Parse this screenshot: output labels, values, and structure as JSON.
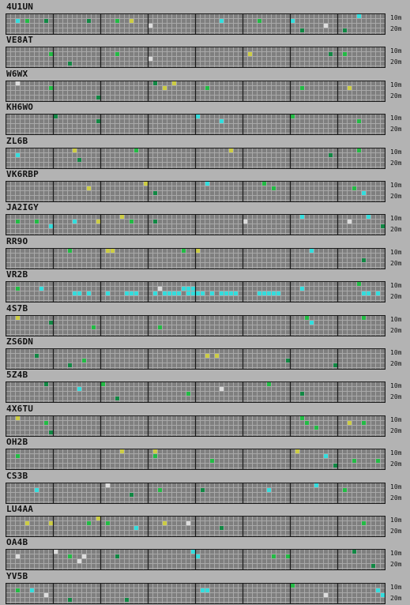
{
  "band_labels": {
    "top": "10m",
    "bottom": "20m"
  },
  "colors": {
    "background": "#b3b3b3",
    "grid_fill": "#7f7f7f",
    "grid_line": "#a9a9a9",
    "hour_line": "#1a1a1a"
  },
  "stations": [
    {
      "call": "4U1UN",
      "spots": [
        [
          2,
          1,
          "c"
        ],
        [
          4,
          1,
          "g"
        ],
        [
          8,
          1,
          "dg"
        ],
        [
          17,
          1,
          "dg"
        ],
        [
          23,
          1,
          "g"
        ],
        [
          26,
          1,
          "y"
        ],
        [
          30,
          2,
          "w"
        ],
        [
          45,
          1,
          "c"
        ],
        [
          53,
          1,
          "g"
        ],
        [
          60,
          1,
          "c"
        ],
        [
          62,
          3,
          "dg"
        ],
        [
          67,
          2,
          "w"
        ],
        [
          71,
          3,
          "dg"
        ],
        [
          74,
          0,
          "c"
        ]
      ]
    },
    {
      "call": "VE8AT",
      "spots": [
        [
          9,
          1,
          "g"
        ],
        [
          13,
          3,
          "dg"
        ],
        [
          23,
          1,
          "g"
        ],
        [
          30,
          2,
          "w"
        ],
        [
          51,
          1,
          "y"
        ],
        [
          68,
          1,
          "dg"
        ],
        [
          71,
          1,
          "g"
        ]
      ]
    },
    {
      "call": "W6WX",
      "spots": [
        [
          2,
          0,
          "w"
        ],
        [
          9,
          1,
          "g"
        ],
        [
          19,
          3,
          "dg"
        ],
        [
          31,
          0,
          "dg"
        ],
        [
          33,
          1,
          "y"
        ],
        [
          35,
          0,
          "y"
        ],
        [
          42,
          1,
          "g"
        ],
        [
          62,
          1,
          "g"
        ],
        [
          72,
          1,
          "y"
        ]
      ]
    },
    {
      "call": "KH6WO",
      "spots": [
        [
          10,
          0,
          "dg"
        ],
        [
          19,
          1,
          "dg"
        ],
        [
          40,
          0,
          "c"
        ],
        [
          45,
          1,
          "c"
        ],
        [
          60,
          0,
          "g"
        ],
        [
          74,
          1,
          "g"
        ]
      ]
    },
    {
      "call": "ZL6B",
      "spots": [
        [
          2,
          1,
          "c"
        ],
        [
          14,
          0,
          "y"
        ],
        [
          15,
          2,
          "dg"
        ],
        [
          27,
          0,
          "g"
        ],
        [
          47,
          0,
          "y"
        ],
        [
          68,
          1,
          "dg"
        ],
        [
          74,
          0,
          "g"
        ]
      ]
    },
    {
      "call": "VK6RBP",
      "spots": [
        [
          17,
          1,
          "y"
        ],
        [
          29,
          0,
          "y"
        ],
        [
          31,
          2,
          "dg"
        ],
        [
          42,
          0,
          "c"
        ],
        [
          54,
          0,
          "g"
        ],
        [
          56,
          1,
          "g"
        ],
        [
          73,
          1,
          "g"
        ],
        [
          75,
          2,
          "c"
        ]
      ]
    },
    {
      "call": "JA2IGY",
      "spots": [
        [
          2,
          1,
          "g"
        ],
        [
          6,
          1,
          "g"
        ],
        [
          9,
          2,
          "c"
        ],
        [
          14,
          1,
          "c"
        ],
        [
          19,
          1,
          "y"
        ],
        [
          24,
          0,
          "y"
        ],
        [
          26,
          1,
          "g"
        ],
        [
          31,
          1,
          "dg"
        ],
        [
          50,
          1,
          "w"
        ],
        [
          62,
          0,
          "c"
        ],
        [
          72,
          1,
          "w"
        ],
        [
          76,
          0,
          "c"
        ],
        [
          79,
          2,
          "dg"
        ]
      ]
    },
    {
      "call": "RR9O",
      "spots": [
        [
          13,
          0,
          "g"
        ],
        [
          21,
          0,
          "y"
        ],
        [
          22,
          0,
          "y"
        ],
        [
          37,
          0,
          "g"
        ],
        [
          40,
          0,
          "y"
        ],
        [
          64,
          0,
          "c"
        ],
        [
          75,
          2,
          "dg"
        ]
      ]
    },
    {
      "call": "VR2B",
      "spots": [
        [
          2,
          1,
          "g"
        ],
        [
          7,
          1,
          "c"
        ],
        [
          14,
          2,
          "c"
        ],
        [
          15,
          2,
          "c"
        ],
        [
          17,
          2,
          "c"
        ],
        [
          21,
          2,
          "c"
        ],
        [
          25,
          2,
          "c"
        ],
        [
          26,
          2,
          "c"
        ],
        [
          27,
          2,
          "c"
        ],
        [
          31,
          2,
          "c"
        ],
        [
          32,
          1,
          "w"
        ],
        [
          33,
          2,
          "c"
        ],
        [
          34,
          2,
          "c"
        ],
        [
          35,
          2,
          "c"
        ],
        [
          36,
          2,
          "c"
        ],
        [
          37,
          1,
          "c"
        ],
        [
          38,
          1,
          "c"
        ],
        [
          38,
          2,
          "c"
        ],
        [
          39,
          1,
          "c"
        ],
        [
          39,
          2,
          "c"
        ],
        [
          40,
          2,
          "c"
        ],
        [
          41,
          2,
          "c"
        ],
        [
          43,
          2,
          "c"
        ],
        [
          45,
          2,
          "c"
        ],
        [
          46,
          2,
          "c"
        ],
        [
          47,
          2,
          "c"
        ],
        [
          48,
          2,
          "c"
        ],
        [
          53,
          2,
          "c"
        ],
        [
          54,
          2,
          "c"
        ],
        [
          55,
          2,
          "c"
        ],
        [
          56,
          2,
          "c"
        ],
        [
          57,
          2,
          "c"
        ],
        [
          62,
          1,
          "c"
        ],
        [
          74,
          0,
          "g"
        ],
        [
          75,
          2,
          "c"
        ],
        [
          76,
          2,
          "c"
        ],
        [
          78,
          2,
          "c"
        ]
      ]
    },
    {
      "call": "4S7B",
      "spots": [
        [
          2,
          0,
          "y"
        ],
        [
          9,
          1,
          "dg"
        ],
        [
          18,
          2,
          "g"
        ],
        [
          32,
          2,
          "g"
        ],
        [
          63,
          0,
          "g"
        ],
        [
          64,
          1,
          "c"
        ],
        [
          75,
          0,
          "g"
        ]
      ]
    },
    {
      "call": "ZS6DN",
      "spots": [
        [
          6,
          1,
          "dg"
        ],
        [
          13,
          3,
          "dg"
        ],
        [
          16,
          2,
          "g"
        ],
        [
          42,
          1,
          "y"
        ],
        [
          44,
          1,
          "y"
        ],
        [
          59,
          2,
          "dg"
        ],
        [
          69,
          3,
          "dg"
        ]
      ]
    },
    {
      "call": "5Z4B",
      "spots": [
        [
          8,
          0,
          "dg"
        ],
        [
          15,
          1,
          "c"
        ],
        [
          20,
          0,
          "g"
        ],
        [
          23,
          3,
          "dg"
        ],
        [
          38,
          2,
          "g"
        ],
        [
          45,
          1,
          "w"
        ],
        [
          55,
          0,
          "g"
        ],
        [
          62,
          2,
          "dg"
        ]
      ]
    },
    {
      "call": "4X6TU",
      "spots": [
        [
          2,
          0,
          "y"
        ],
        [
          8,
          1,
          "g"
        ],
        [
          9,
          3,
          "dg"
        ],
        [
          62,
          0,
          "g"
        ],
        [
          63,
          1,
          "g"
        ],
        [
          65,
          2,
          "g"
        ],
        [
          72,
          1,
          "y"
        ],
        [
          75,
          1,
          "g"
        ]
      ]
    },
    {
      "call": "OH2B",
      "spots": [
        [
          2,
          1,
          "g"
        ],
        [
          24,
          0,
          "y"
        ],
        [
          31,
          0,
          "y"
        ],
        [
          31,
          1,
          "g"
        ],
        [
          43,
          2,
          "g"
        ],
        [
          61,
          0,
          "y"
        ],
        [
          67,
          1,
          "c"
        ],
        [
          69,
          3,
          "dg"
        ],
        [
          73,
          2,
          "g"
        ],
        [
          78,
          2,
          "g"
        ]
      ]
    },
    {
      "call": "CS3B",
      "spots": [
        [
          6,
          1,
          "c"
        ],
        [
          21,
          0,
          "w"
        ],
        [
          26,
          2,
          "dg"
        ],
        [
          32,
          1,
          "g"
        ],
        [
          41,
          1,
          "dg"
        ],
        [
          55,
          1,
          "c"
        ],
        [
          65,
          0,
          "c"
        ],
        [
          71,
          1,
          "g"
        ]
      ]
    },
    {
      "call": "LU4AA",
      "spots": [
        [
          4,
          1,
          "y"
        ],
        [
          9,
          1,
          "y"
        ],
        [
          17,
          1,
          "g"
        ],
        [
          19,
          0,
          "y"
        ],
        [
          21,
          1,
          "g"
        ],
        [
          27,
          2,
          "c"
        ],
        [
          33,
          1,
          "y"
        ],
        [
          38,
          1,
          "w"
        ],
        [
          45,
          2,
          "dg"
        ],
        [
          75,
          1,
          "g"
        ]
      ]
    },
    {
      "call": "OA4B",
      "spots": [
        [
          2,
          1,
          "w"
        ],
        [
          10,
          0,
          "w"
        ],
        [
          13,
          1,
          "g"
        ],
        [
          15,
          2,
          "w"
        ],
        [
          16,
          1,
          "w"
        ],
        [
          23,
          1,
          "dg"
        ],
        [
          39,
          0,
          "c"
        ],
        [
          40,
          1,
          "c"
        ],
        [
          56,
          1,
          "g"
        ],
        [
          59,
          1,
          "g"
        ],
        [
          73,
          0,
          "dg"
        ],
        [
          77,
          3,
          "dg"
        ]
      ]
    },
    {
      "call": "YV5B",
      "spots": [
        [
          2,
          1,
          "g"
        ],
        [
          5,
          1,
          "c"
        ],
        [
          8,
          2,
          "w"
        ],
        [
          13,
          3,
          "dg"
        ],
        [
          25,
          3,
          "dg"
        ],
        [
          41,
          1,
          "c"
        ],
        [
          42,
          1,
          "c"
        ],
        [
          60,
          0,
          "g"
        ],
        [
          67,
          2,
          "w"
        ],
        [
          78,
          1,
          "c"
        ],
        [
          79,
          2,
          "c"
        ]
      ]
    }
  ]
}
